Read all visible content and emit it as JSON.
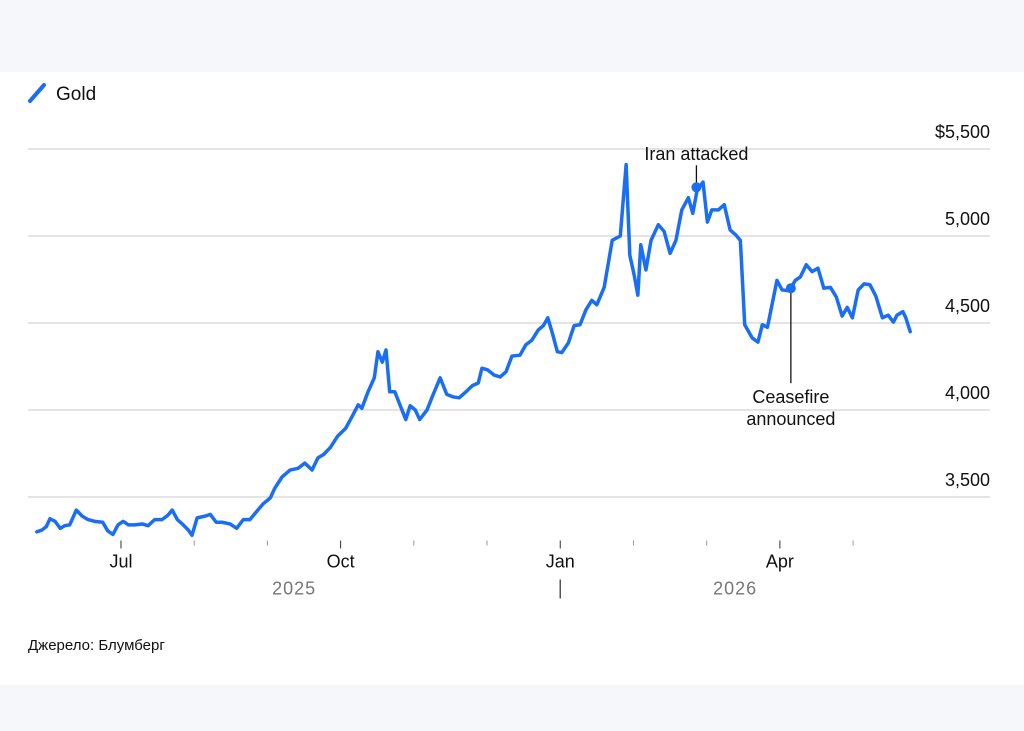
{
  "chart_data": {
    "type": "line",
    "legend_position": "top-left",
    "source": "Джерело: Блумберг",
    "xlim": [
      4.73,
      17.87
    ],
    "xticks": [
      {
        "value": 6,
        "label": "Jul"
      },
      {
        "value": 9,
        "label": "Oct"
      },
      {
        "value": 12,
        "label": "Jan"
      },
      {
        "value": 15,
        "label": "Apr"
      }
    ],
    "xticks_minor": [
      7,
      8,
      10,
      11,
      13,
      14,
      16
    ],
    "years": [
      "2025",
      "2026"
    ],
    "year_divider": 12,
    "ylim": [
      3250,
      5600
    ],
    "yticks": [
      {
        "value": 5500,
        "label": "$5,500"
      },
      {
        "value": 5000,
        "label": "5,000"
      },
      {
        "value": 4500,
        "label": "4,500"
      },
      {
        "value": 4000,
        "label": "4,000"
      },
      {
        "value": 3500,
        "label": "3,500"
      }
    ],
    "grid": true,
    "x": [
      4.85,
      4.92,
      4.98,
      5.03,
      5.1,
      5.17,
      5.23,
      5.3,
      5.39,
      5.47,
      5.55,
      5.64,
      5.75,
      5.82,
      5.89,
      5.96,
      6.03,
      6.1,
      6.19,
      6.29,
      6.37,
      6.46,
      6.56,
      6.64,
      6.7,
      6.77,
      6.85,
      6.92,
      6.97,
      7.04,
      7.15,
      7.22,
      7.3,
      7.38,
      7.49,
      7.58,
      7.67,
      7.76,
      7.86,
      7.94,
      8.04,
      8.1,
      8.2,
      8.31,
      8.42,
      8.51,
      8.61,
      8.69,
      8.77,
      8.86,
      8.96,
      9.07,
      9.16,
      9.24,
      9.29,
      9.37,
      9.46,
      9.51,
      9.57,
      9.62,
      9.67,
      9.74,
      9.81,
      9.89,
      9.95,
      10.02,
      10.08,
      10.18,
      10.26,
      10.36,
      10.45,
      10.54,
      10.62,
      10.7,
      10.8,
      10.88,
      10.93,
      11.01,
      11.1,
      11.18,
      11.26,
      11.34,
      11.45,
      11.53,
      11.61,
      11.7,
      11.77,
      11.83,
      11.9,
      11.96,
      12.02,
      12.11,
      12.19,
      12.27,
      12.35,
      12.43,
      12.5,
      12.6,
      12.71,
      12.82,
      12.9,
      12.95,
      13.01,
      13.06,
      13.1,
      13.17,
      13.24,
      13.34,
      13.42,
      13.5,
      13.58,
      13.66,
      13.75,
      13.81,
      13.87,
      13.95,
      14.01,
      14.07,
      14.16,
      14.24,
      14.32,
      14.4,
      14.46,
      14.52,
      14.62,
      14.7,
      14.76,
      14.83,
      14.89,
      14.96,
      15.03,
      15.13,
      15.21,
      15.28,
      15.36,
      15.44,
      15.52,
      15.6,
      15.69,
      15.77,
      15.85,
      15.92,
      15.99,
      16.07,
      16.15,
      16.23,
      16.31,
      16.4,
      16.48,
      16.55,
      16.6,
      16.68,
      16.72,
      16.78
    ],
    "series": [
      {
        "name": "Gold",
        "color": "#1a6ef5",
        "values": [
          3300,
          3310,
          3330,
          3375,
          3360,
          3320,
          3335,
          3340,
          3425,
          3390,
          3370,
          3360,
          3355,
          3305,
          3285,
          3340,
          3360,
          3340,
          3340,
          3345,
          3335,
          3370,
          3370,
          3395,
          3425,
          3370,
          3340,
          3310,
          3280,
          3380,
          3390,
          3400,
          3355,
          3355,
          3345,
          3320,
          3370,
          3370,
          3420,
          3460,
          3495,
          3550,
          3615,
          3655,
          3665,
          3695,
          3655,
          3725,
          3745,
          3785,
          3850,
          3895,
          3965,
          4030,
          4010,
          4100,
          4185,
          4335,
          4275,
          4345,
          4105,
          4105,
          4030,
          3945,
          4025,
          4000,
          3945,
          4000,
          4085,
          4185,
          4090,
          4075,
          4070,
          4100,
          4140,
          4155,
          4240,
          4230,
          4200,
          4190,
          4220,
          4310,
          4315,
          4375,
          4400,
          4460,
          4485,
          4530,
          4430,
          4335,
          4330,
          4385,
          4485,
          4490,
          4575,
          4630,
          4605,
          4705,
          4975,
          5000,
          5410,
          4890,
          4775,
          4660,
          4950,
          4805,
          4975,
          5065,
          5025,
          4900,
          4975,
          5150,
          5220,
          5130,
          5265,
          5310,
          5080,
          5150,
          5150,
          5180,
          5035,
          5005,
          4975,
          4490,
          4415,
          4390,
          4490,
          4475,
          4600,
          4745,
          4690,
          4685,
          4745,
          4765,
          4835,
          4795,
          4815,
          4700,
          4705,
          4650,
          4540,
          4590,
          4530,
          4690,
          4725,
          4720,
          4655,
          4530,
          4545,
          4505,
          4545,
          4565,
          4530,
          4450
        ]
      }
    ],
    "annotations": [
      {
        "lines": [
          "Iran attacked"
        ],
        "x": 13.86,
        "y": 5280,
        "position": "above"
      },
      {
        "lines": [
          "Ceasefire",
          "announced"
        ],
        "x": 15.15,
        "y": 4700,
        "position": "below"
      }
    ]
  }
}
